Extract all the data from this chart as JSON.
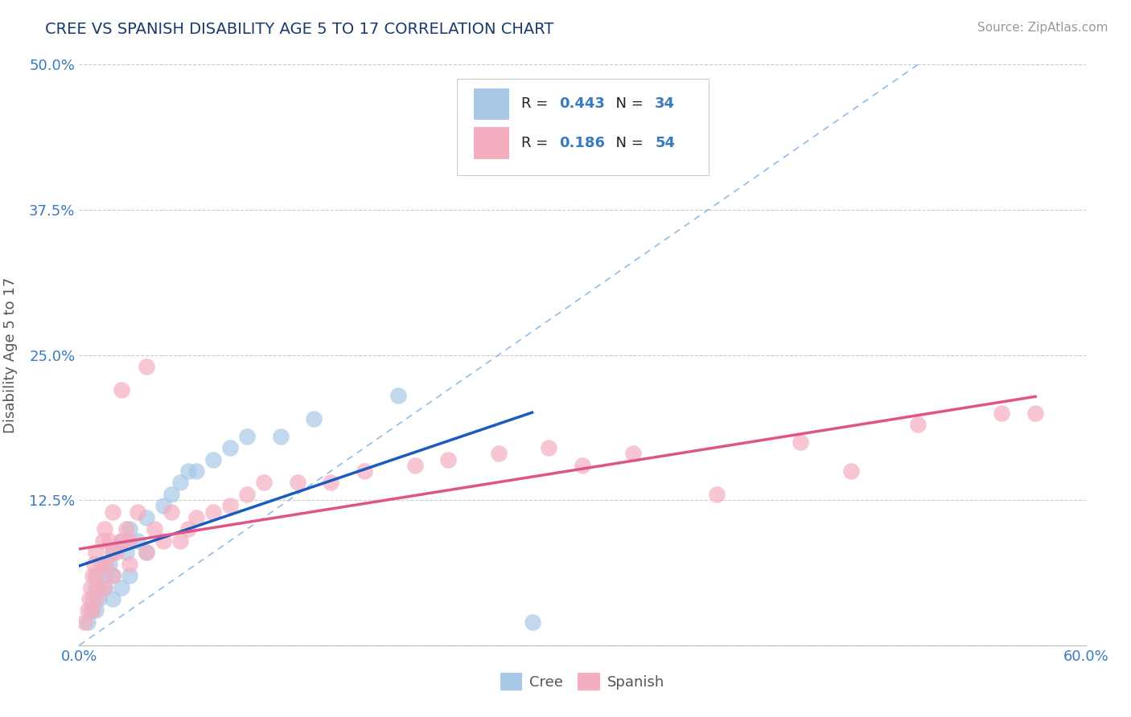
{
  "title": "CREE VS SPANISH DISABILITY AGE 5 TO 17 CORRELATION CHART",
  "source_text": "Source: ZipAtlas.com",
  "ylabel": "Disability Age 5 to 17",
  "xlim": [
    0.0,
    0.6
  ],
  "ylim": [
    0.0,
    0.5
  ],
  "xticks": [
    0.0,
    0.1,
    0.2,
    0.3,
    0.4,
    0.5,
    0.6
  ],
  "xticklabels": [
    "0.0%",
    "",
    "",
    "",
    "",
    "",
    "60.0%"
  ],
  "yticks": [
    0.0,
    0.125,
    0.25,
    0.375,
    0.5
  ],
  "yticklabels": [
    "",
    "12.5%",
    "25.0%",
    "37.5%",
    "50.0%"
  ],
  "cree_R": 0.443,
  "cree_N": 34,
  "spanish_R": 0.186,
  "spanish_N": 54,
  "cree_color": "#a8c8e8",
  "spanish_color": "#f5aec0",
  "cree_line_color": "#1a5bbf",
  "spanish_line_color": "#e05585",
  "diagonal_color": "#90bce8",
  "title_color": "#1a3a6b",
  "axis_label_color": "#555555",
  "tick_color": "#3a7abf",
  "source_color": "#999999",
  "background_color": "#ffffff",
  "grid_color": "#cccccc",
  "legend_text_color": "#222222",
  "legend_val_cree_color": "#3a7abf",
  "legend_val_spanish_color": "#3a7abf",
  "cree_x": [
    0.005,
    0.007,
    0.008,
    0.01,
    0.01,
    0.01,
    0.012,
    0.015,
    0.015,
    0.016,
    0.018,
    0.02,
    0.02,
    0.02,
    0.025,
    0.025,
    0.028,
    0.03,
    0.03,
    0.035,
    0.04,
    0.04,
    0.05,
    0.055,
    0.06,
    0.065,
    0.07,
    0.08,
    0.09,
    0.1,
    0.12,
    0.14,
    0.19,
    0.27
  ],
  "cree_y": [
    0.02,
    0.03,
    0.04,
    0.03,
    0.05,
    0.06,
    0.04,
    0.05,
    0.07,
    0.06,
    0.07,
    0.04,
    0.06,
    0.08,
    0.05,
    0.09,
    0.08,
    0.06,
    0.1,
    0.09,
    0.08,
    0.11,
    0.12,
    0.13,
    0.14,
    0.15,
    0.15,
    0.16,
    0.17,
    0.18,
    0.18,
    0.195,
    0.215,
    0.02
  ],
  "spanish_x": [
    0.003,
    0.005,
    0.006,
    0.007,
    0.008,
    0.008,
    0.009,
    0.01,
    0.01,
    0.01,
    0.012,
    0.013,
    0.014,
    0.015,
    0.015,
    0.016,
    0.018,
    0.02,
    0.02,
    0.02,
    0.022,
    0.025,
    0.025,
    0.028,
    0.03,
    0.03,
    0.035,
    0.04,
    0.04,
    0.045,
    0.05,
    0.055,
    0.06,
    0.065,
    0.07,
    0.08,
    0.09,
    0.1,
    0.11,
    0.13,
    0.15,
    0.17,
    0.2,
    0.22,
    0.25,
    0.28,
    0.3,
    0.33,
    0.38,
    0.43,
    0.46,
    0.5,
    0.55,
    0.57
  ],
  "spanish_y": [
    0.02,
    0.03,
    0.04,
    0.05,
    0.03,
    0.06,
    0.07,
    0.04,
    0.06,
    0.08,
    0.05,
    0.07,
    0.09,
    0.05,
    0.1,
    0.07,
    0.09,
    0.06,
    0.08,
    0.115,
    0.08,
    0.09,
    0.22,
    0.1,
    0.07,
    0.09,
    0.115,
    0.08,
    0.24,
    0.1,
    0.09,
    0.115,
    0.09,
    0.1,
    0.11,
    0.115,
    0.12,
    0.13,
    0.14,
    0.14,
    0.14,
    0.15,
    0.155,
    0.16,
    0.165,
    0.17,
    0.155,
    0.165,
    0.13,
    0.175,
    0.15,
    0.19,
    0.2,
    0.2
  ]
}
